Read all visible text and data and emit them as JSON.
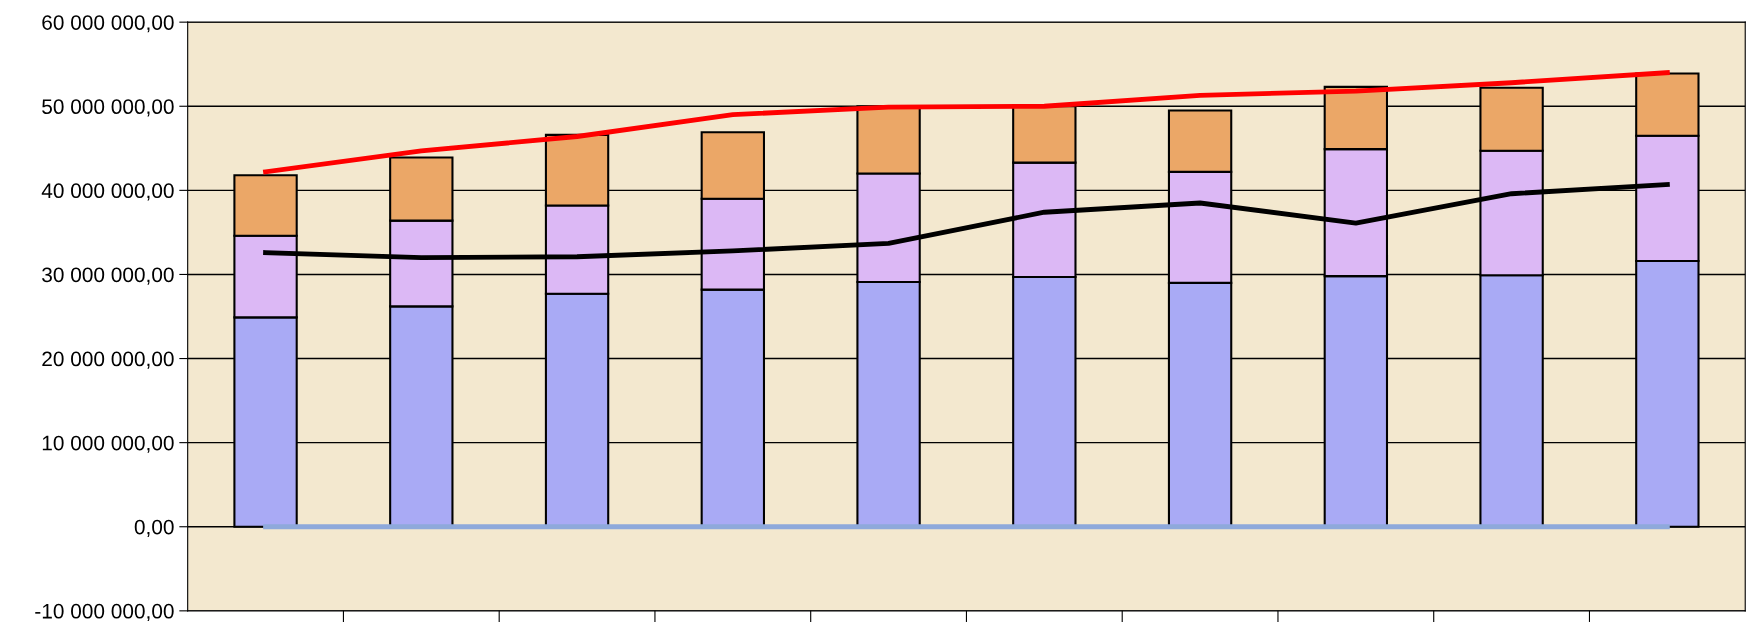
{
  "chart_data": {
    "type": "bar",
    "stacked": true,
    "categories": [
      null,
      null,
      null,
      null,
      null,
      null,
      null,
      null,
      null,
      null
    ],
    "series": [
      {
        "color": "#a9aaf5",
        "values": [
          24900000,
          26200000,
          27700000,
          28200000,
          29100000,
          29700000,
          29000000,
          29800000,
          29900000,
          31600000
        ]
      },
      {
        "color": "#dcb8f5",
        "values": [
          9700000,
          10200000,
          10500000,
          10800000,
          12900000,
          13600000,
          13200000,
          15100000,
          14800000,
          14900000
        ]
      },
      {
        "color": "#eba767",
        "values": [
          7200000,
          7500000,
          8400000,
          7900000,
          8000000,
          6700000,
          7300000,
          7400000,
          7500000,
          7400000
        ]
      },
      {
        "type": "line",
        "color": "#ff0000",
        "values": [
          42200000,
          44700000,
          46400000,
          49000000,
          49900000,
          50000000,
          51300000,
          51800000,
          52800000,
          54000000
        ]
      },
      {
        "type": "line",
        "color": "#000000",
        "values": [
          32600000,
          32000000,
          32100000,
          32800000,
          33700000,
          37400000,
          38500000,
          36100000,
          39600000,
          40700000
        ]
      },
      {
        "type": "line",
        "color": "#8ea9db",
        "values": [
          0,
          0,
          0,
          0,
          0,
          0,
          0,
          0,
          0,
          0
        ]
      }
    ],
    "ylim": [
      -10000000,
      60000000
    ],
    "yticks": [
      {
        "value": -10000000,
        "label": "-10 000 000,00"
      },
      {
        "value": 0,
        "label": "0,00"
      },
      {
        "value": 10000000,
        "label": "10 000 000,00"
      },
      {
        "value": 20000000,
        "label": "20 000 000,00"
      },
      {
        "value": 30000000,
        "label": "30 000 000,00"
      },
      {
        "value": 40000000,
        "label": "40 000 000,00"
      },
      {
        "value": 50000000,
        "label": "50 000 000,00"
      },
      {
        "value": 60000000,
        "label": "60 000 000,00"
      }
    ],
    "grid": "y",
    "tick_labels": "y",
    "marker": "none",
    "line_style": "solid",
    "legend": false
  }
}
